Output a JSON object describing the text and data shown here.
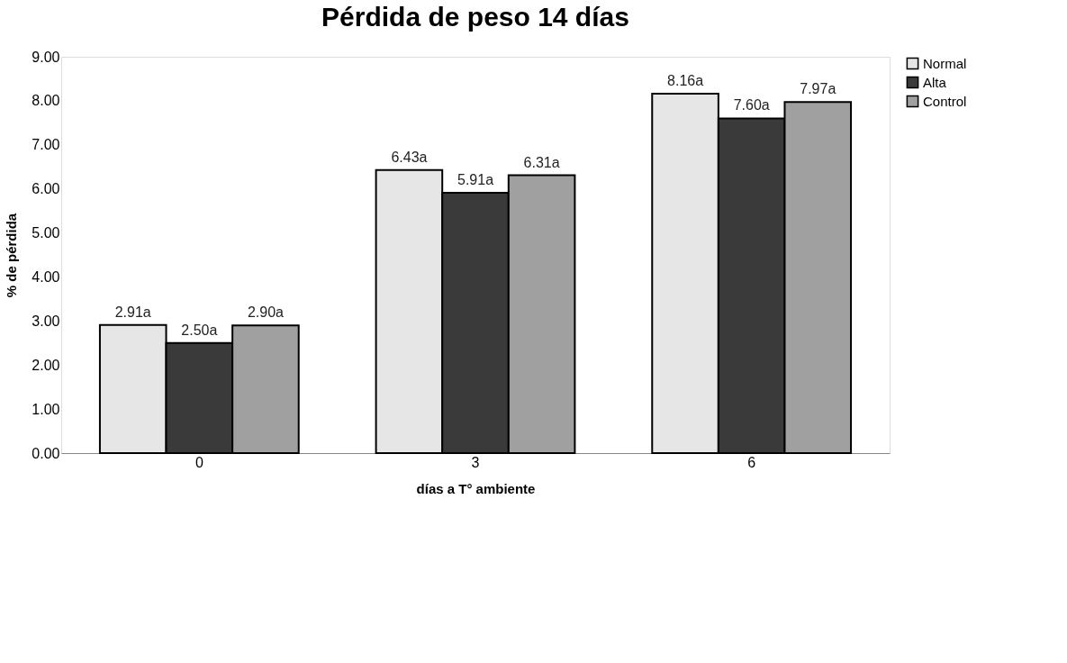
{
  "chart_data": {
    "type": "bar",
    "title": "Pérdida de peso 14 días",
    "xlabel": "días a T° ambiente",
    "ylabel": "% de pérdida",
    "categories": [
      "0",
      "3",
      "6"
    ],
    "series": [
      {
        "name": "Normal",
        "color": "#e6e6e6",
        "values": [
          2.91,
          6.43,
          8.16
        ],
        "value_labels": [
          "2.91a",
          "6.43a",
          "8.16a"
        ]
      },
      {
        "name": "Alta",
        "color": "#3a3a3a",
        "values": [
          2.5,
          5.91,
          7.6
        ],
        "value_labels": [
          "2.50a",
          "5.91a",
          "7.60a"
        ]
      },
      {
        "name": "Control",
        "color": "#a0a0a0",
        "values": [
          2.9,
          6.31,
          7.97
        ],
        "value_labels": [
          "2.90a",
          "6.31a",
          "7.97a"
        ]
      }
    ],
    "ylim": [
      0,
      9
    ],
    "yticks": [
      {
        "value": 0,
        "label": "0.00"
      },
      {
        "value": 1,
        "label": "1.00"
      },
      {
        "value": 2,
        "label": "2.00"
      },
      {
        "value": 3,
        "label": "3.00"
      },
      {
        "value": 4,
        "label": "4.00"
      },
      {
        "value": 5,
        "label": "5.00"
      },
      {
        "value": 6,
        "label": "6.00"
      },
      {
        "value": 7,
        "label": "7.00"
      },
      {
        "value": 8,
        "label": "8.00"
      },
      {
        "value": 9,
        "label": "9.00"
      }
    ],
    "grid": false,
    "legend": "right"
  }
}
